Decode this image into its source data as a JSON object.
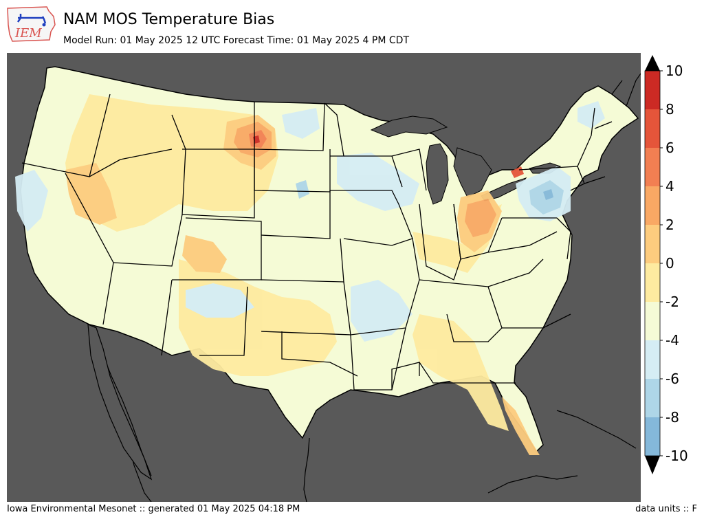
{
  "header": {
    "logo_text": "IEM",
    "title": "NAM MOS Temperature Bias",
    "subtitle": "Model Run: 01 May 2025 12 UTC Forecast Time: 01 May 2025 4 PM CDT"
  },
  "colorbar": {
    "ticks": [
      "10",
      "8",
      "6",
      "4",
      "2",
      "0",
      "-2",
      "-4",
      "-6",
      "-8",
      "-10"
    ],
    "levels": [
      10,
      9,
      8,
      7,
      6,
      5,
      4,
      3,
      2,
      1,
      0,
      -1,
      -2,
      -3,
      -4,
      -5,
      -6,
      -7,
      -8,
      -9,
      -10
    ],
    "colors": [
      "#cc2a24",
      "#e5553a",
      "#f27f52",
      "#f9a864",
      "#fdcc7e",
      "#feeba0",
      "#f5fbd6",
      "#d5edf4",
      "#aed6e8",
      "#84b8da",
      "#5b8fc7"
    ],
    "over_color": "#000000",
    "under_color": "#000000"
  },
  "map": {
    "ocean_color": "#595959",
    "land_base_color": "#f5fbd6"
  },
  "footer": {
    "left": "Iowa Environmental Mesonet :: generated 01 May 2025 04:18 PM",
    "right": "data units :: F"
  }
}
